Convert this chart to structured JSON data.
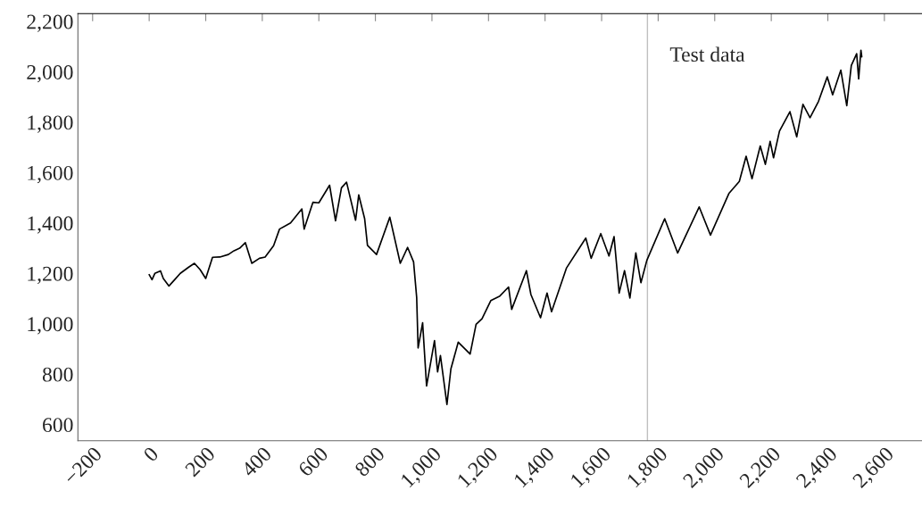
{
  "chart_data": {
    "type": "line",
    "x": [
      0,
      10,
      20,
      40,
      50,
      70,
      90,
      110,
      140,
      160,
      180,
      200,
      224,
      250,
      280,
      300,
      320,
      340,
      363,
      390,
      410,
      440,
      461,
      500,
      540,
      548,
      579,
      600,
      638,
      659,
      680,
      698,
      730,
      741,
      762,
      772,
      804,
      851,
      888,
      914,
      935,
      946,
      951,
      967,
      981,
      1009,
      1020,
      1030,
      1053,
      1067,
      1093,
      1135,
      1156,
      1177,
      1208,
      1240,
      1271,
      1282,
      1334,
      1350,
      1384,
      1407,
      1423,
      1476,
      1544,
      1563,
      1597,
      1626,
      1644,
      1662,
      1681,
      1700,
      1721,
      1739,
      1760,
      1823,
      1869,
      1945,
      1985,
      2050,
      2087,
      2111,
      2132,
      2161,
      2179,
      2196,
      2208,
      2229,
      2266,
      2290,
      2312,
      2337,
      2367,
      2398,
      2417,
      2446,
      2467,
      2483,
      2502,
      2509,
      2517,
      2520
    ],
    "series": [
      {
        "color": "#000000",
        "values": [
          1195,
          1175,
          1200,
          1210,
          1180,
          1150,
          1175,
          1200,
          1225,
          1240,
          1215,
          1180,
          1264,
          1265,
          1275,
          1290,
          1300,
          1322,
          1240,
          1260,
          1265,
          1310,
          1376,
          1400,
          1456,
          1376,
          1482,
          1480,
          1550,
          1409,
          1540,
          1562,
          1411,
          1512,
          1417,
          1311,
          1275,
          1423,
          1240,
          1303,
          1246,
          1104,
          904,
          1004,
          753,
          933,
          809,
          874,
          680,
          821,
          927,
          880,
          998,
          1020,
          1092,
          1110,
          1146,
          1057,
          1211,
          1116,
          1024,
          1122,
          1048,
          1222,
          1340,
          1260,
          1358,
          1269,
          1346,
          1122,
          1211,
          1102,
          1281,
          1163,
          1252,
          1417,
          1281,
          1464,
          1352,
          1517,
          1565,
          1665,
          1576,
          1706,
          1633,
          1724,
          1659,
          1765,
          1842,
          1742,
          1871,
          1818,
          1883,
          1980,
          1909,
          2007,
          1866,
          2025,
          2072,
          1972,
          2086,
          2060
        ]
      }
    ],
    "xlim": [
      -252,
      2733
    ],
    "ylim": [
      536,
      2231
    ],
    "xticks": [
      {
        "value": -200,
        "label": "−200"
      },
      0,
      200,
      400,
      600,
      800,
      {
        "value": 1000,
        "label": "1,000"
      },
      {
        "value": 1200,
        "label": "1,200"
      },
      {
        "value": 1400,
        "label": "1,400"
      },
      {
        "value": 1600,
        "label": "1,600"
      },
      {
        "value": 1800,
        "label": "1,800"
      },
      {
        "value": 2000,
        "label": "2,000"
      },
      {
        "value": 2200,
        "label": "2,200"
      },
      {
        "value": 2400,
        "label": "2,400"
      },
      {
        "value": 2600,
        "label": "2,600"
      }
    ],
    "yticks": [
      600,
      800,
      {
        "value": 1000,
        "label": "1,000"
      },
      {
        "value": 1200,
        "label": "1,200"
      },
      {
        "value": 1400,
        "label": "1,400"
      },
      {
        "value": 1600,
        "label": "1,600"
      },
      {
        "value": 1800,
        "label": "1,800"
      },
      {
        "value": 2000,
        "label": "2,000"
      },
      {
        "value": 2200,
        "label": "2,200"
      }
    ],
    "ref_lines": [
      {
        "axis": "x",
        "value": 1762,
        "color": "#c0c0c0"
      }
    ],
    "annotations": [
      "Test data"
    ],
    "grid": false,
    "legend": false,
    "marker": "none",
    "line_style": "solid"
  }
}
